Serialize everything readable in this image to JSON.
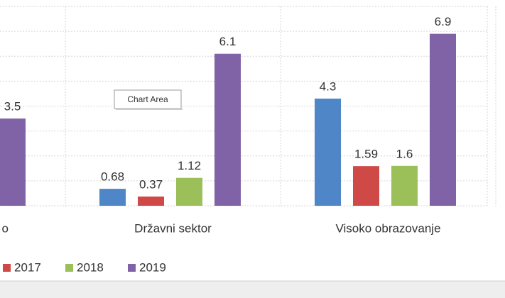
{
  "chart_data": {
    "type": "bar",
    "categories": [
      "o",
      "Državni sektor",
      "Visoko obrazovanje"
    ],
    "series": [
      {
        "color": "#4e86c8",
        "values": [
          null,
          0.68,
          4.3
        ]
      },
      {
        "name": "2017",
        "color": "#cf4a47",
        "values": [
          null,
          0.37,
          1.59
        ]
      },
      {
        "name": "2018",
        "color": "#9bc05a",
        "values": [
          null,
          1.12,
          1.6
        ]
      },
      {
        "name": "2019",
        "color": "#8063a6",
        "values": [
          3.5,
          6.1,
          6.9
        ]
      }
    ],
    "ylim": [
      0,
      8
    ],
    "yticks": [
      0,
      1,
      2,
      3,
      4,
      5,
      6,
      7,
      8
    ],
    "grid": true,
    "tooltip": "Chart Area"
  }
}
